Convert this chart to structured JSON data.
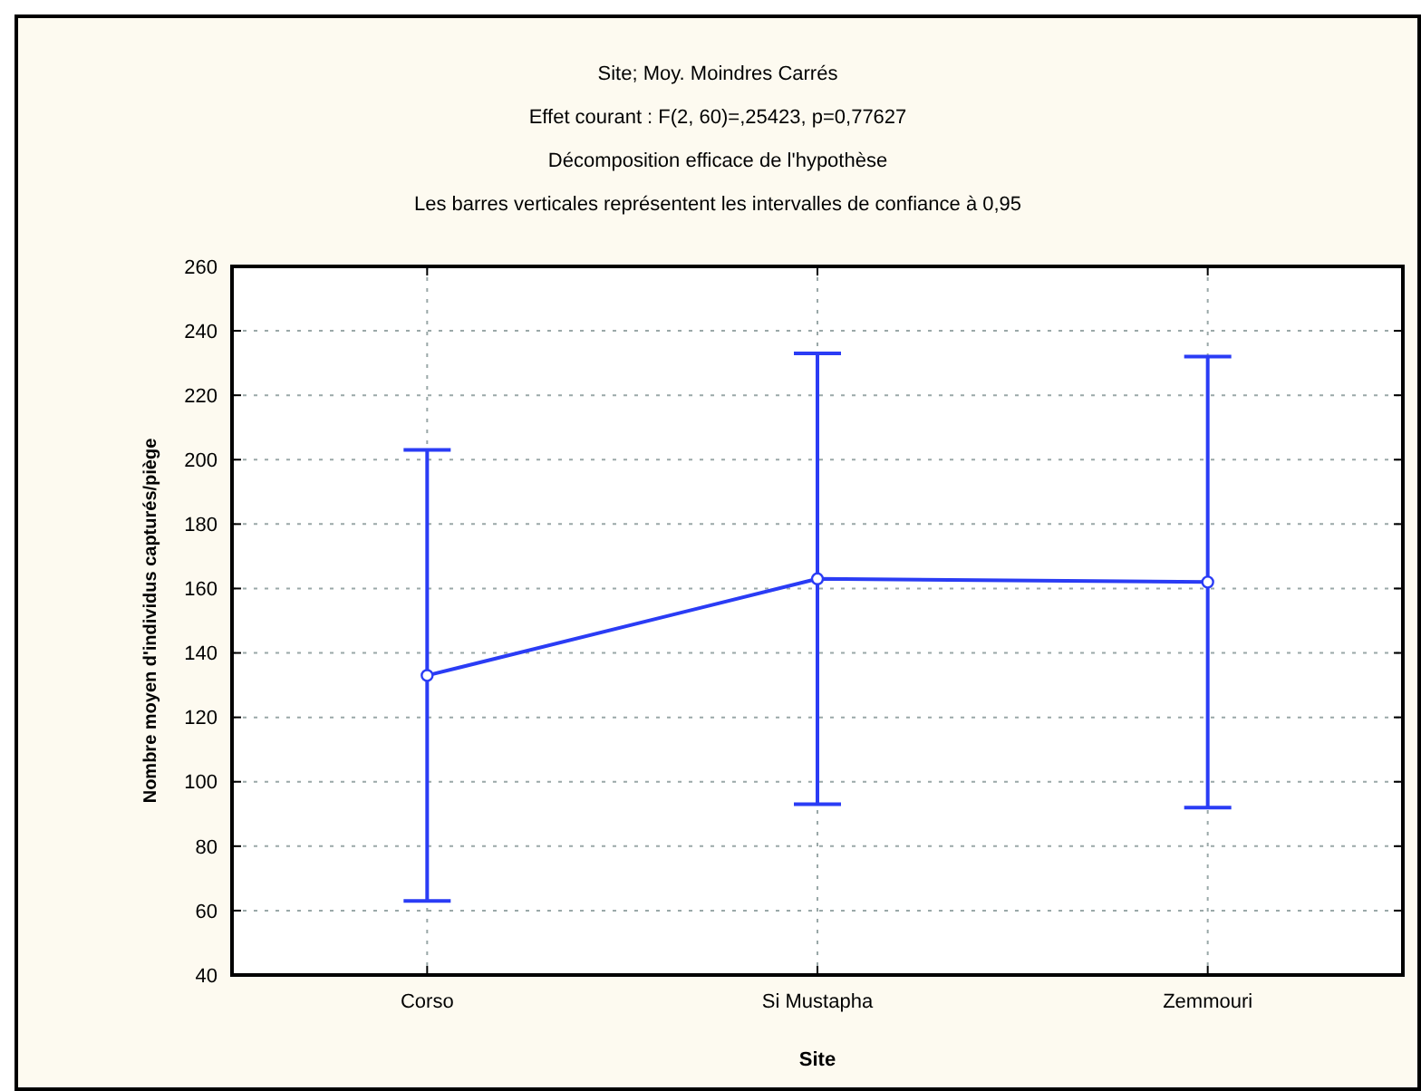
{
  "chart_data": {
    "type": "line",
    "title": "Site; Moy. Moindres Carrés",
    "subtitle": "Effet courant : F(2, 60)=,25423, p=0,77627",
    "annotations": [
      "Décomposition efficace de l'hypothèse",
      "Les barres verticales représentent les intervalles de confiance à 0,95"
    ],
    "xlabel": "Site",
    "ylabel": "Nombre moyen d'individus capturés/piège",
    "categories": [
      "Corso",
      "Si Mustapha",
      "Zemmouri"
    ],
    "series": [
      {
        "color": "#2a3cf5",
        "values": [
          133,
          163,
          162
        ],
        "errors": [
          70,
          70,
          70
        ]
      }
    ],
    "ylim": [
      40,
      260
    ],
    "yticks": [
      40,
      60,
      80,
      100,
      120,
      140,
      160,
      180,
      200,
      220,
      240,
      260
    ],
    "grid": true,
    "marker": "circle",
    "line_style": "solid"
  }
}
